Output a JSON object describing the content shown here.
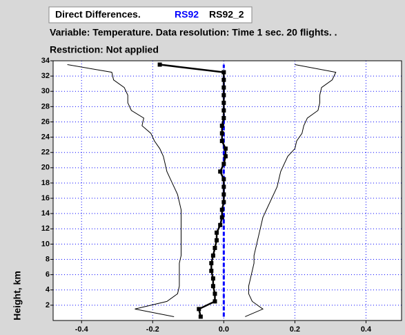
{
  "chart_data": {
    "type": "profile",
    "title": "Direct Differences.",
    "subtitle": "Variable: Temperature. Data resolution: Time 1 sec. 20 flights. .",
    "note": "Restriction: Not applied",
    "ylabel": "Height, km",
    "y": [
      0.5,
      1.5,
      2.5,
      3.5,
      4.5,
      5.5,
      6.5,
      7.5,
      8.5,
      9.5,
      10.5,
      11.5,
      12.5,
      13.5,
      14.5,
      15.5,
      16.5,
      17.5,
      18.5,
      19.5,
      20.5,
      21.5,
      22.5,
      23.5,
      24.5,
      25.5,
      26.5,
      27.5,
      28.5,
      29.5,
      30.5,
      31.5,
      32.5,
      33.5
    ],
    "series": [
      {
        "name": "RS92",
        "color": "#0000ff",
        "style": "dashed",
        "values": [
          0,
          0,
          0,
          0,
          0,
          0,
          0,
          0,
          0,
          0,
          0,
          0,
          0,
          0,
          0,
          0,
          0,
          0,
          0,
          0,
          0,
          0,
          0,
          0,
          0,
          0,
          0,
          0,
          0,
          0,
          0,
          0,
          0,
          0
        ]
      },
      {
        "name": "RS92_2",
        "color": "#000000",
        "style": "markers",
        "values": [
          -0.065,
          -0.07,
          -0.025,
          -0.025,
          -0.03,
          -0.03,
          -0.035,
          -0.035,
          -0.03,
          -0.025,
          -0.02,
          -0.02,
          -0.01,
          -0.005,
          -0.005,
          0,
          0,
          0,
          0,
          -0.01,
          0,
          0.005,
          0.005,
          -0.005,
          -0.005,
          -0.005,
          0,
          0,
          0,
          0,
          0,
          0,
          0,
          -0.18
        ]
      },
      {
        "color": "#000000",
        "style": "thin",
        "values": [
          -0.14,
          -0.25,
          -0.16,
          -0.13,
          -0.125,
          -0.125,
          -0.125,
          -0.125,
          -0.12,
          -0.12,
          -0.12,
          -0.12,
          -0.12,
          -0.12,
          -0.12,
          -0.125,
          -0.13,
          -0.14,
          -0.15,
          -0.16,
          -0.165,
          -0.17,
          -0.18,
          -0.195,
          -0.205,
          -0.23,
          -0.225,
          -0.26,
          -0.27,
          -0.27,
          -0.28,
          -0.31,
          -0.315,
          -0.44
        ]
      },
      {
        "color": "#000000",
        "style": "thin",
        "values": [
          0.06,
          0.11,
          0.08,
          0.07,
          0.07,
          0.075,
          0.08,
          0.085,
          0.085,
          0.09,
          0.095,
          0.1,
          0.105,
          0.11,
          0.12,
          0.13,
          0.14,
          0.15,
          0.155,
          0.16,
          0.17,
          0.18,
          0.2,
          0.205,
          0.22,
          0.225,
          0.235,
          0.265,
          0.27,
          0.27,
          0.275,
          0.305,
          0.315,
          0.2
        ]
      }
    ],
    "xlim": [
      -0.48,
      0.5
    ],
    "xticks": [
      -0.4,
      -0.2,
      {
        "value": 0,
        "label": "0.0"
      },
      0.2,
      0.4
    ],
    "ylim": [
      0,
      34
    ],
    "yticks": [
      2,
      4,
      6,
      8,
      10,
      12,
      14,
      16,
      18,
      20,
      22,
      24,
      26,
      28,
      30,
      32,
      34
    ],
    "grid": true,
    "grid_color": "#0000ff"
  }
}
